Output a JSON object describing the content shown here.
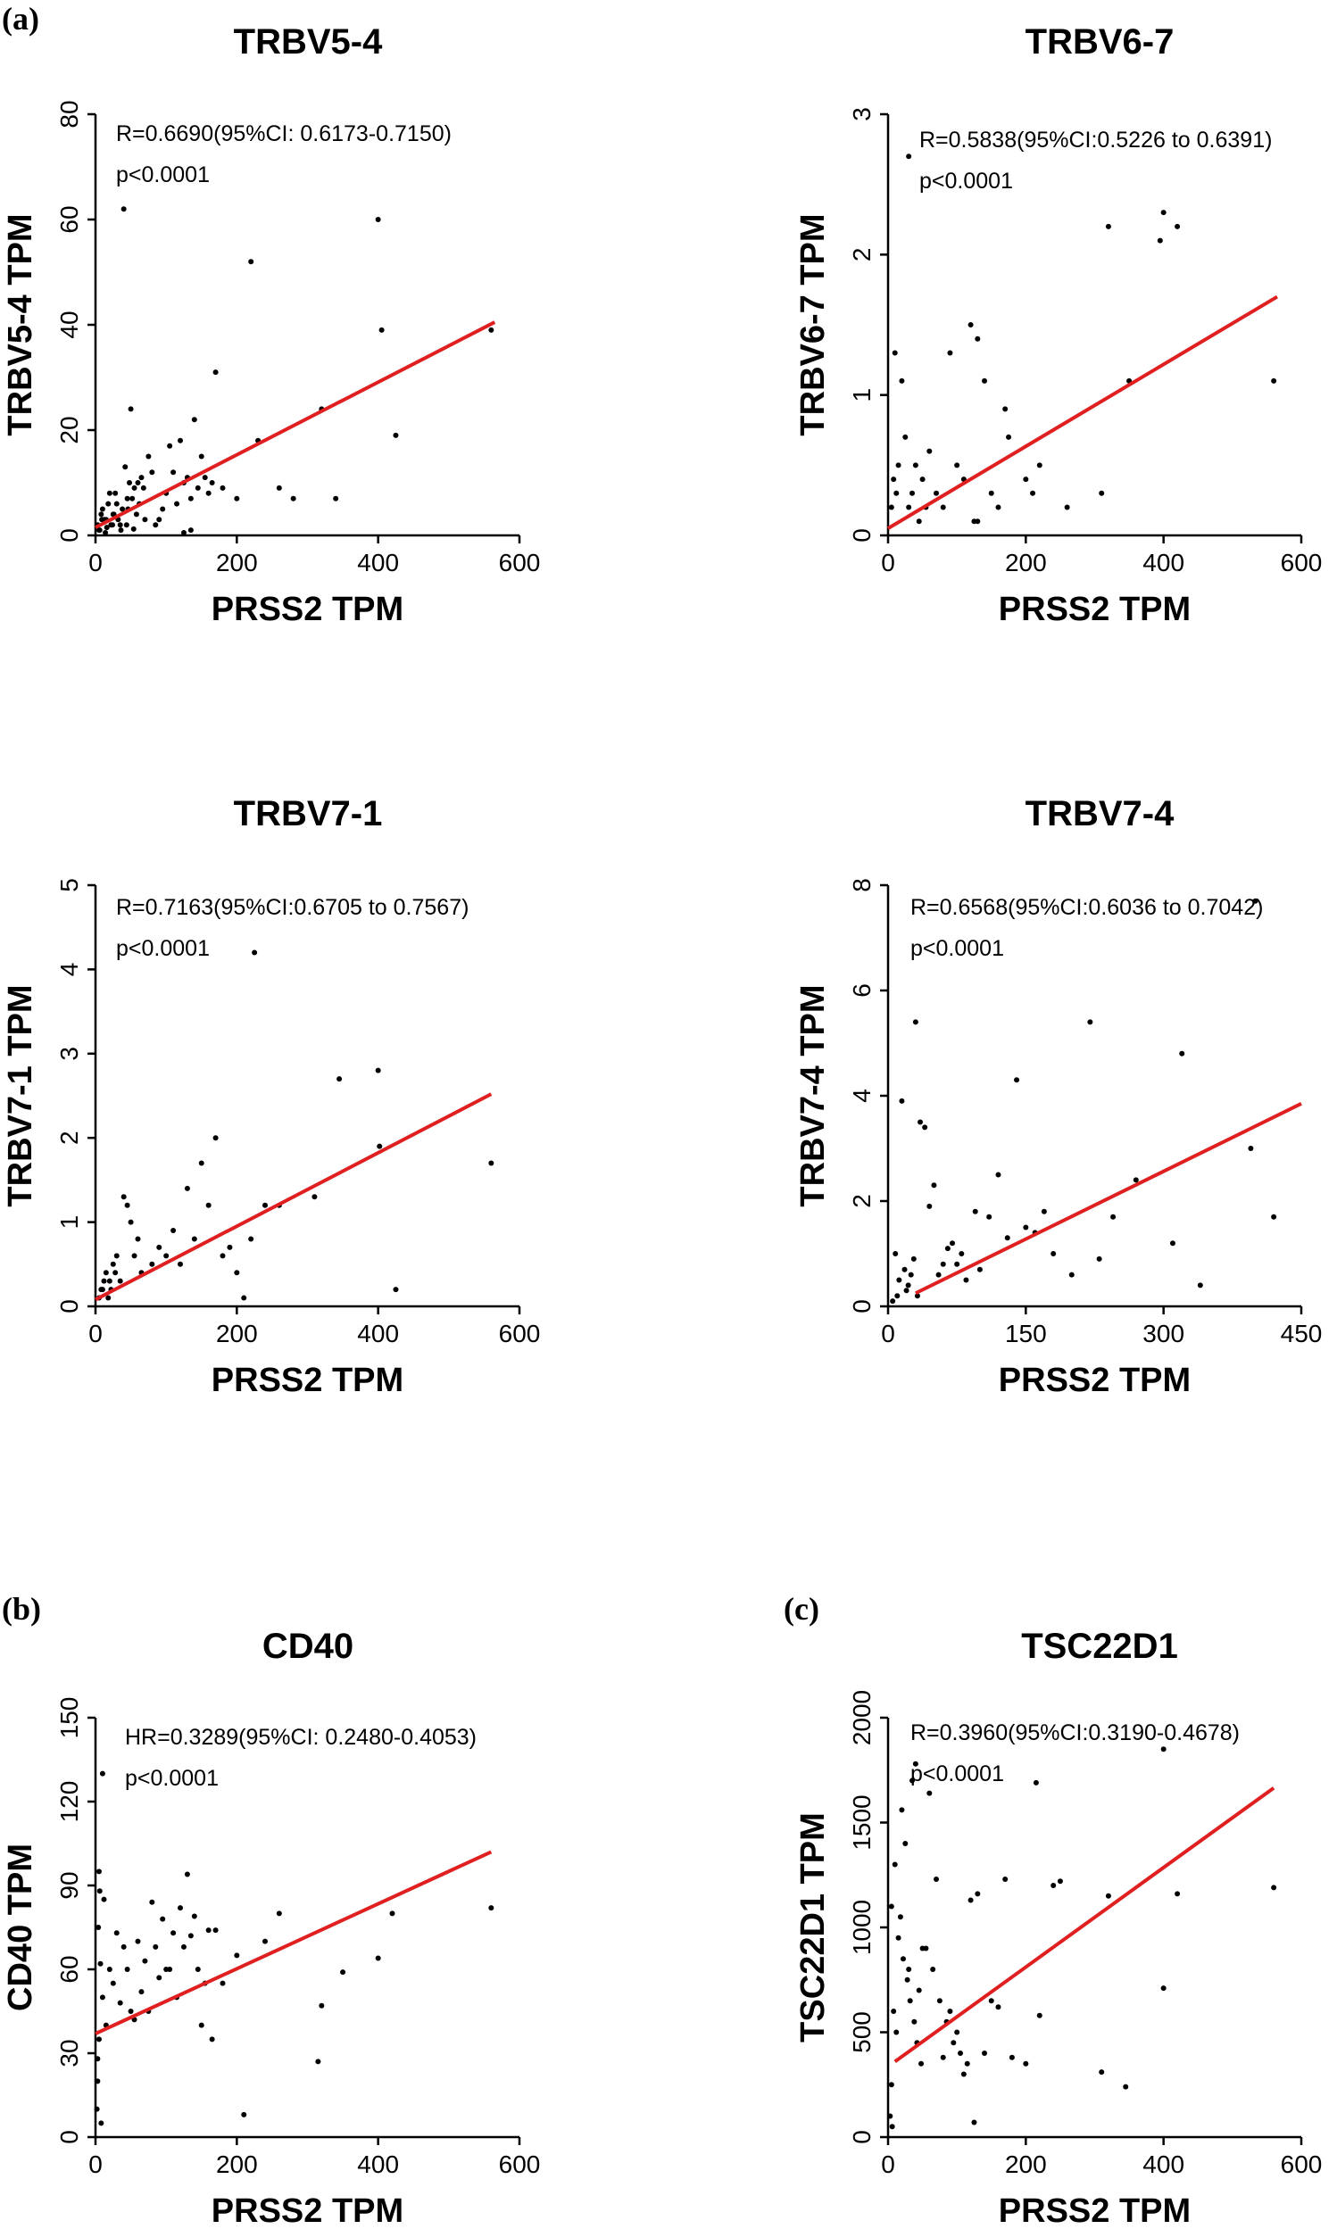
{
  "panel_letters": [
    "(a)",
    "(b)",
    "(c)"
  ],
  "chart_data": [
    {
      "type": "scatter",
      "title": "TRBV5-4",
      "xlabel": "PRSS2 TPM",
      "ylabel": "TRBV5-4 TPM",
      "xlim": [
        0,
        600
      ],
      "ylim": [
        0,
        80
      ],
      "xticks": [
        0,
        200,
        400,
        600
      ],
      "yticks": [
        0,
        20,
        40,
        60,
        80
      ],
      "annotations": [
        "R=0.6690(95%CI: 0.6173-0.7150)",
        "p<0.0001"
      ],
      "regression": {
        "x": [
          0,
          565
        ],
        "y": [
          1.5,
          40.5
        ],
        "color": "#e02020"
      },
      "series": [
        {
          "x": [
            40,
            220,
            400,
            405,
            425,
            560,
            170,
            140,
            120,
            105,
            80,
            75,
            50,
            60,
            10,
            15,
            20,
            25,
            30,
            35,
            45,
            55,
            65,
            5,
            8,
            12,
            18,
            22,
            28,
            38,
            42,
            48,
            52,
            58,
            62,
            68,
            90,
            95,
            100,
            110,
            115,
            125,
            130,
            135,
            145,
            150,
            155,
            160,
            165,
            180,
            200,
            230,
            260,
            280,
            320,
            340,
            3,
            6,
            9,
            14,
            16,
            24,
            26,
            32,
            36,
            44,
            46,
            54,
            70,
            85,
            125,
            135
          ],
          "y": [
            62,
            52,
            60,
            39,
            19,
            39,
            31,
            22,
            18,
            17,
            12,
            15,
            24,
            10,
            5,
            3,
            8,
            4,
            6,
            2,
            7,
            9,
            11,
            1,
            4,
            3,
            6,
            2,
            8,
            5,
            13,
            10,
            7,
            4,
            6,
            9,
            3,
            5,
            8,
            12,
            6,
            10,
            11,
            7,
            9,
            15,
            11,
            8,
            10,
            9,
            7,
            18,
            9,
            7,
            24,
            7,
            2,
            1,
            3,
            0.5,
            1.5,
            2,
            4,
            3,
            1,
            2,
            5,
            1.2,
            3,
            2,
            0.5,
            1
          ]
        }
      ]
    },
    {
      "type": "scatter",
      "title": "TRBV6-7",
      "xlabel": "PRSS2 TPM",
      "ylabel": "TRBV6-7 TPM",
      "xlim": [
        0,
        600
      ],
      "ylim": [
        0,
        3
      ],
      "xticks": [
        0,
        200,
        400,
        600
      ],
      "yticks": [
        0,
        1,
        2,
        3
      ],
      "annotations": [
        "R=0.5838(95%CI:0.5226 to 0.6391)",
        "p<0.0001"
      ],
      "regression": {
        "x": [
          0,
          565
        ],
        "y": [
          0.05,
          1.7
        ],
        "color": "#e02020"
      },
      "series": [
        {
          "x": [
            30,
            320,
            395,
            400,
            420,
            560,
            350,
            120,
            130,
            140,
            90,
            170,
            175,
            10,
            20,
            25,
            15,
            5,
            8,
            12,
            30,
            40,
            50,
            60,
            70,
            80,
            100,
            110,
            150,
            160,
            200,
            210,
            220,
            260,
            310,
            125,
            130,
            45,
            35,
            55
          ],
          "y": [
            2.7,
            2.2,
            2.1,
            2.3,
            2.2,
            1.1,
            1.1,
            1.5,
            1.4,
            1.1,
            1.3,
            0.9,
            0.7,
            1.3,
            1.1,
            0.7,
            0.5,
            0.2,
            0.4,
            0.3,
            0.2,
            0.5,
            0.4,
            0.6,
            0.3,
            0.2,
            0.5,
            0.4,
            0.3,
            0.2,
            0.4,
            0.3,
            0.5,
            0.2,
            0.3,
            0.1,
            0.1,
            0.1,
            0.3,
            0.2
          ]
        }
      ]
    },
    {
      "type": "scatter",
      "title": "TRBV7-1",
      "xlabel": "PRSS2 TPM",
      "ylabel": "TRBV7-1 TPM",
      "xlim": [
        0,
        600
      ],
      "ylim": [
        0,
        5
      ],
      "xticks": [
        0,
        200,
        400,
        600
      ],
      "yticks": [
        0,
        1,
        2,
        3,
        4,
        5
      ],
      "annotations": [
        "R=0.7163(95%CI:0.6705 to 0.7567)",
        "p<0.0001"
      ],
      "regression": {
        "x": [
          0,
          560
        ],
        "y": [
          0.08,
          2.52
        ],
        "color": "#e02020"
      },
      "series": [
        {
          "x": [
            225,
            400,
            345,
            402,
            560,
            170,
            150,
            130,
            160,
            190,
            310,
            260,
            240,
            425,
            40,
            45,
            50,
            60,
            30,
            20,
            10,
            5,
            15,
            25,
            35,
            55,
            65,
            80,
            90,
            100,
            110,
            120,
            140,
            180,
            200,
            210,
            220,
            8,
            12,
            18,
            22,
            28
          ],
          "y": [
            4.2,
            2.8,
            2.7,
            1.9,
            1.7,
            2.0,
            1.7,
            1.4,
            1.2,
            0.7,
            1.3,
            1.2,
            1.2,
            0.2,
            1.3,
            1.2,
            1.0,
            0.8,
            0.6,
            0.3,
            0.2,
            0.1,
            0.4,
            0.5,
            0.3,
            0.6,
            0.4,
            0.5,
            0.7,
            0.6,
            0.9,
            0.5,
            0.8,
            0.6,
            0.4,
            0.1,
            0.8,
            0.2,
            0.3,
            0.1,
            0.2,
            0.4
          ]
        }
      ]
    },
    {
      "type": "scatter",
      "title": "TRBV7-4",
      "xlabel": "PRSS2 TPM",
      "ylabel": "TRBV7-4 TPM",
      "xlim": [
        0,
        450
      ],
      "ylim": [
        0,
        8
      ],
      "xticks": [
        0,
        150,
        300,
        450
      ],
      "yticks": [
        0,
        2,
        4,
        6,
        8
      ],
      "annotations": [
        "R=0.6568(95%CI:0.6036 to 0.7042)",
        "p<0.0001"
      ],
      "regression": {
        "x": [
          30,
          450
        ],
        "y": [
          0.25,
          3.85
        ],
        "color": "#e02020"
      },
      "series": [
        {
          "x": [
            400,
            30,
            220,
            140,
            320,
            15,
            35,
            40,
            395,
            310,
            340,
            420,
            270,
            245,
            170,
            160,
            120,
            110,
            95,
            80,
            70,
            60,
            50,
            45,
            25,
            20,
            10,
            5,
            8,
            12,
            18,
            22,
            28,
            32,
            55,
            65,
            75,
            85,
            100,
            130,
            150,
            180,
            200,
            230
          ],
          "y": [
            7.7,
            5.4,
            5.4,
            4.3,
            4.8,
            3.9,
            3.5,
            3.4,
            3.0,
            1.2,
            0.4,
            1.7,
            2.4,
            1.7,
            1.8,
            1.4,
            2.5,
            1.7,
            1.8,
            1.0,
            1.2,
            0.8,
            2.3,
            1.9,
            0.6,
            0.3,
            0.2,
            0.1,
            1.0,
            0.5,
            0.7,
            0.4,
            0.9,
            0.2,
            0.6,
            1.1,
            0.8,
            0.5,
            0.7,
            1.3,
            1.5,
            1.0,
            0.6,
            0.9
          ]
        }
      ]
    },
    {
      "type": "scatter",
      "title": "CD40",
      "xlabel": "PRSS2 TPM",
      "ylabel": "CD40 TPM",
      "xlim": [
        0,
        600
      ],
      "ylim": [
        0,
        150
      ],
      "xticks": [
        0,
        200,
        400,
        600
      ],
      "yticks": [
        0,
        30,
        60,
        90,
        120,
        150
      ],
      "annotations": [
        "HR=0.3289(95%CI: 0.2480-0.4053)",
        "p<0.0001"
      ],
      "regression": {
        "x": [
          0,
          560
        ],
        "y": [
          37,
          102
        ],
        "color": "#e02020"
      },
      "series": [
        {
          "x": [
            10,
            130,
            120,
            560,
            420,
            400,
            350,
            320,
            315,
            260,
            240,
            210,
            200,
            180,
            160,
            150,
            140,
            125,
            110,
            100,
            90,
            80,
            70,
            60,
            50,
            40,
            30,
            20,
            15,
            10,
            5,
            3,
            2,
            8,
            12,
            25,
            35,
            45,
            55,
            65,
            75,
            85,
            95,
            105,
            115,
            135,
            145,
            155,
            165,
            170,
            5,
            4,
            6,
            7,
            3
          ],
          "y": [
            130,
            94,
            82,
            82,
            80,
            64,
            59,
            47,
            27,
            80,
            70,
            8,
            65,
            55,
            74,
            40,
            79,
            68,
            73,
            60,
            57,
            84,
            63,
            70,
            45,
            68,
            73,
            60,
            40,
            50,
            35,
            20,
            10,
            5,
            85,
            55,
            48,
            60,
            42,
            52,
            45,
            68,
            78,
            60,
            50,
            72,
            60,
            55,
            35,
            74,
            95,
            75,
            88,
            62,
            28
          ]
        }
      ]
    },
    {
      "type": "scatter",
      "title": "TSC22D1",
      "xlabel": "PRSS2 TPM",
      "ylabel": "TSC22D1  TPM",
      "xlim": [
        0,
        600
      ],
      "ylim": [
        0,
        2000
      ],
      "xticks": [
        0,
        200,
        400,
        600
      ],
      "yticks": [
        0,
        500,
        1000,
        1500,
        2000
      ],
      "annotations": [
        "R=0.3960(95%CI:0.3190-0.4678)",
        "p<0.0001"
      ],
      "regression": {
        "x": [
          10,
          560
        ],
        "y": [
          360,
          1665
        ],
        "color": "#e02020"
      },
      "series": [
        {
          "x": [
            400,
            40,
            60,
            35,
            20,
            25,
            215,
            130,
            120,
            170,
            250,
            240,
            320,
            420,
            560,
            400,
            310,
            345,
            180,
            160,
            150,
            140,
            125,
            110,
            100,
            90,
            80,
            70,
            50,
            45,
            30,
            15,
            10,
            5,
            8,
            12,
            18,
            22,
            28,
            32,
            38,
            42,
            48,
            55,
            65,
            75,
            85,
            95,
            105,
            115,
            200,
            220,
            5,
            3,
            6
          ],
          "y": [
            1850,
            1780,
            1640,
            1700,
            1560,
            1400,
            1690,
            1160,
            1130,
            1230,
            1220,
            1200,
            1150,
            1160,
            1190,
            710,
            310,
            240,
            380,
            620,
            650,
            400,
            70,
            300,
            500,
            600,
            380,
            1230,
            900,
            700,
            800,
            950,
            1300,
            1100,
            600,
            500,
            1050,
            850,
            750,
            650,
            550,
            450,
            350,
            900,
            800,
            650,
            550,
            450,
            400,
            350,
            350,
            580,
            250,
            100,
            50
          ]
        }
      ]
    }
  ]
}
